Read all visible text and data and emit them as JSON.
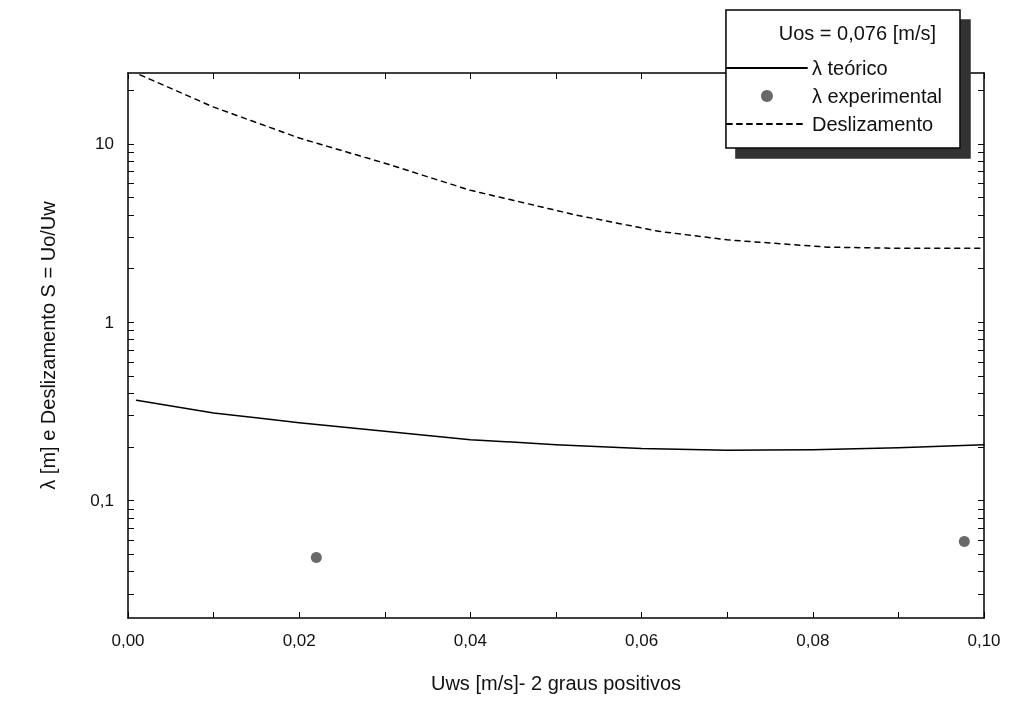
{
  "chart_data": {
    "type": "line",
    "xlabel": "Uws [m/s]- 2 graus positivos",
    "ylabel": "λ [m] e Deslizamento S = Uo/Uw",
    "legend_title": "Uos = 0,076 [m/s]",
    "legend": "top right",
    "log": "y",
    "grid": false,
    "xlim": [
      0,
      0.1
    ],
    "ylim": [
      0.022,
      25
    ],
    "xticks": [
      {
        "value": 0,
        "label": "0,00"
      },
      {
        "value": 0.01,
        "label": null
      },
      {
        "value": 0.02,
        "label": "0,02"
      },
      {
        "value": 0.03,
        "label": null
      },
      {
        "value": 0.04,
        "label": "0,04"
      },
      {
        "value": 0.05,
        "label": null
      },
      {
        "value": 0.06,
        "label": "0,06"
      },
      {
        "value": 0.07,
        "label": null
      },
      {
        "value": 0.08,
        "label": "0,08"
      },
      {
        "value": 0.09,
        "label": null
      },
      {
        "value": 0.1,
        "label": "0,10"
      }
    ],
    "yticks": [
      {
        "value": 0.03,
        "label": null
      },
      {
        "value": 0.04,
        "label": null
      },
      {
        "value": 0.05,
        "label": null
      },
      {
        "value": 0.06,
        "label": null
      },
      {
        "value": 0.07,
        "label": null
      },
      {
        "value": 0.08,
        "label": null
      },
      {
        "value": 0.09,
        "label": null
      },
      {
        "value": 0.1,
        "label": "0,1"
      },
      {
        "value": 0.2,
        "label": null
      },
      {
        "value": 0.3,
        "label": null
      },
      {
        "value": 0.4,
        "label": null
      },
      {
        "value": 0.5,
        "label": null
      },
      {
        "value": 0.6,
        "label": null
      },
      {
        "value": 0.7,
        "label": null
      },
      {
        "value": 0.8,
        "label": null
      },
      {
        "value": 0.9,
        "label": null
      },
      {
        "value": 1,
        "label": "1"
      },
      {
        "value": 2,
        "label": null
      },
      {
        "value": 3,
        "label": null
      },
      {
        "value": 4,
        "label": null
      },
      {
        "value": 5,
        "label": null
      },
      {
        "value": 6,
        "label": null
      },
      {
        "value": 7,
        "label": null
      },
      {
        "value": 8,
        "label": null
      },
      {
        "value": 9,
        "label": null
      },
      {
        "value": 10,
        "label": "10"
      },
      {
        "value": 20,
        "label": null
      }
    ],
    "series": [
      {
        "name": "λ teórico",
        "type": "line",
        "color": "#000000",
        "line_style": "solid",
        "marker": "none",
        "x": [
          0.001,
          0.01,
          0.02,
          0.03,
          0.04,
          0.05,
          0.06,
          0.07,
          0.08,
          0.09,
          0.1
        ],
        "values": [
          0.366,
          0.31,
          0.274,
          0.245,
          0.22,
          0.206,
          0.196,
          0.192,
          0.193,
          0.198,
          0.206
        ]
      },
      {
        "name": "λ experimental",
        "type": "scatter",
        "color": "#444444",
        "marker": "circle",
        "x": [
          0.022,
          0.0977
        ],
        "values": [
          0.048,
          0.059
        ]
      },
      {
        "name": "Deslizamento",
        "type": "line",
        "color": "#000000",
        "line_style": "dashed",
        "marker": "none",
        "x": [
          0.0014,
          0.01,
          0.02,
          0.03,
          0.04,
          0.0523,
          0.062,
          0.07,
          0.0817,
          0.09,
          0.1
        ],
        "values": [
          24.4,
          16.1,
          10.8,
          7.8,
          5.5,
          4.0,
          3.24,
          2.9,
          2.64,
          2.6,
          2.6
        ]
      }
    ]
  }
}
